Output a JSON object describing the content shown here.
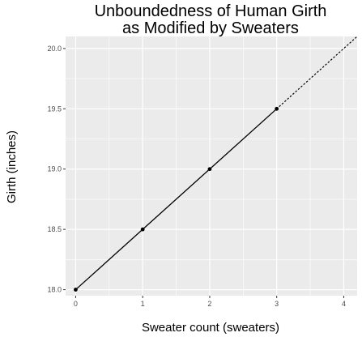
{
  "chart_data": {
    "type": "line",
    "title_lines": [
      "Unboundedness of Human Girth",
      "as Modified by Sweaters"
    ],
    "xlabel": "Sweater count (sweaters)",
    "ylabel": "Girth (inches)",
    "xlim": [
      -0.15,
      4.2
    ],
    "ylim": [
      17.95,
      20.1
    ],
    "x_ticks": [
      0,
      1,
      2,
      3,
      4
    ],
    "x_tick_labels": [
      "0",
      "1",
      "2",
      "3",
      "4"
    ],
    "y_ticks": [
      18.0,
      18.5,
      19.0,
      19.5,
      20.0
    ],
    "y_tick_labels": [
      "18.0",
      "18.5",
      "19.0",
      "19.5",
      "20.0"
    ],
    "x_minor_ticks": [
      0.5,
      1.5,
      2.5,
      3.5
    ],
    "y_minor_ticks": [
      18.25,
      18.75,
      19.25,
      19.75
    ],
    "grid": true,
    "series": [
      {
        "style": "solid",
        "markers": true,
        "x": [
          0,
          1,
          2,
          3
        ],
        "y": [
          18.0,
          18.5,
          19.0,
          19.5
        ]
      },
      {
        "style": "dotted",
        "markers": false,
        "x": [
          3,
          4.2
        ],
        "y": [
          19.5,
          20.1
        ]
      }
    ],
    "colors": {
      "panel": "#ebebeb",
      "grid": "#ffffff",
      "line": "#000000"
    }
  }
}
